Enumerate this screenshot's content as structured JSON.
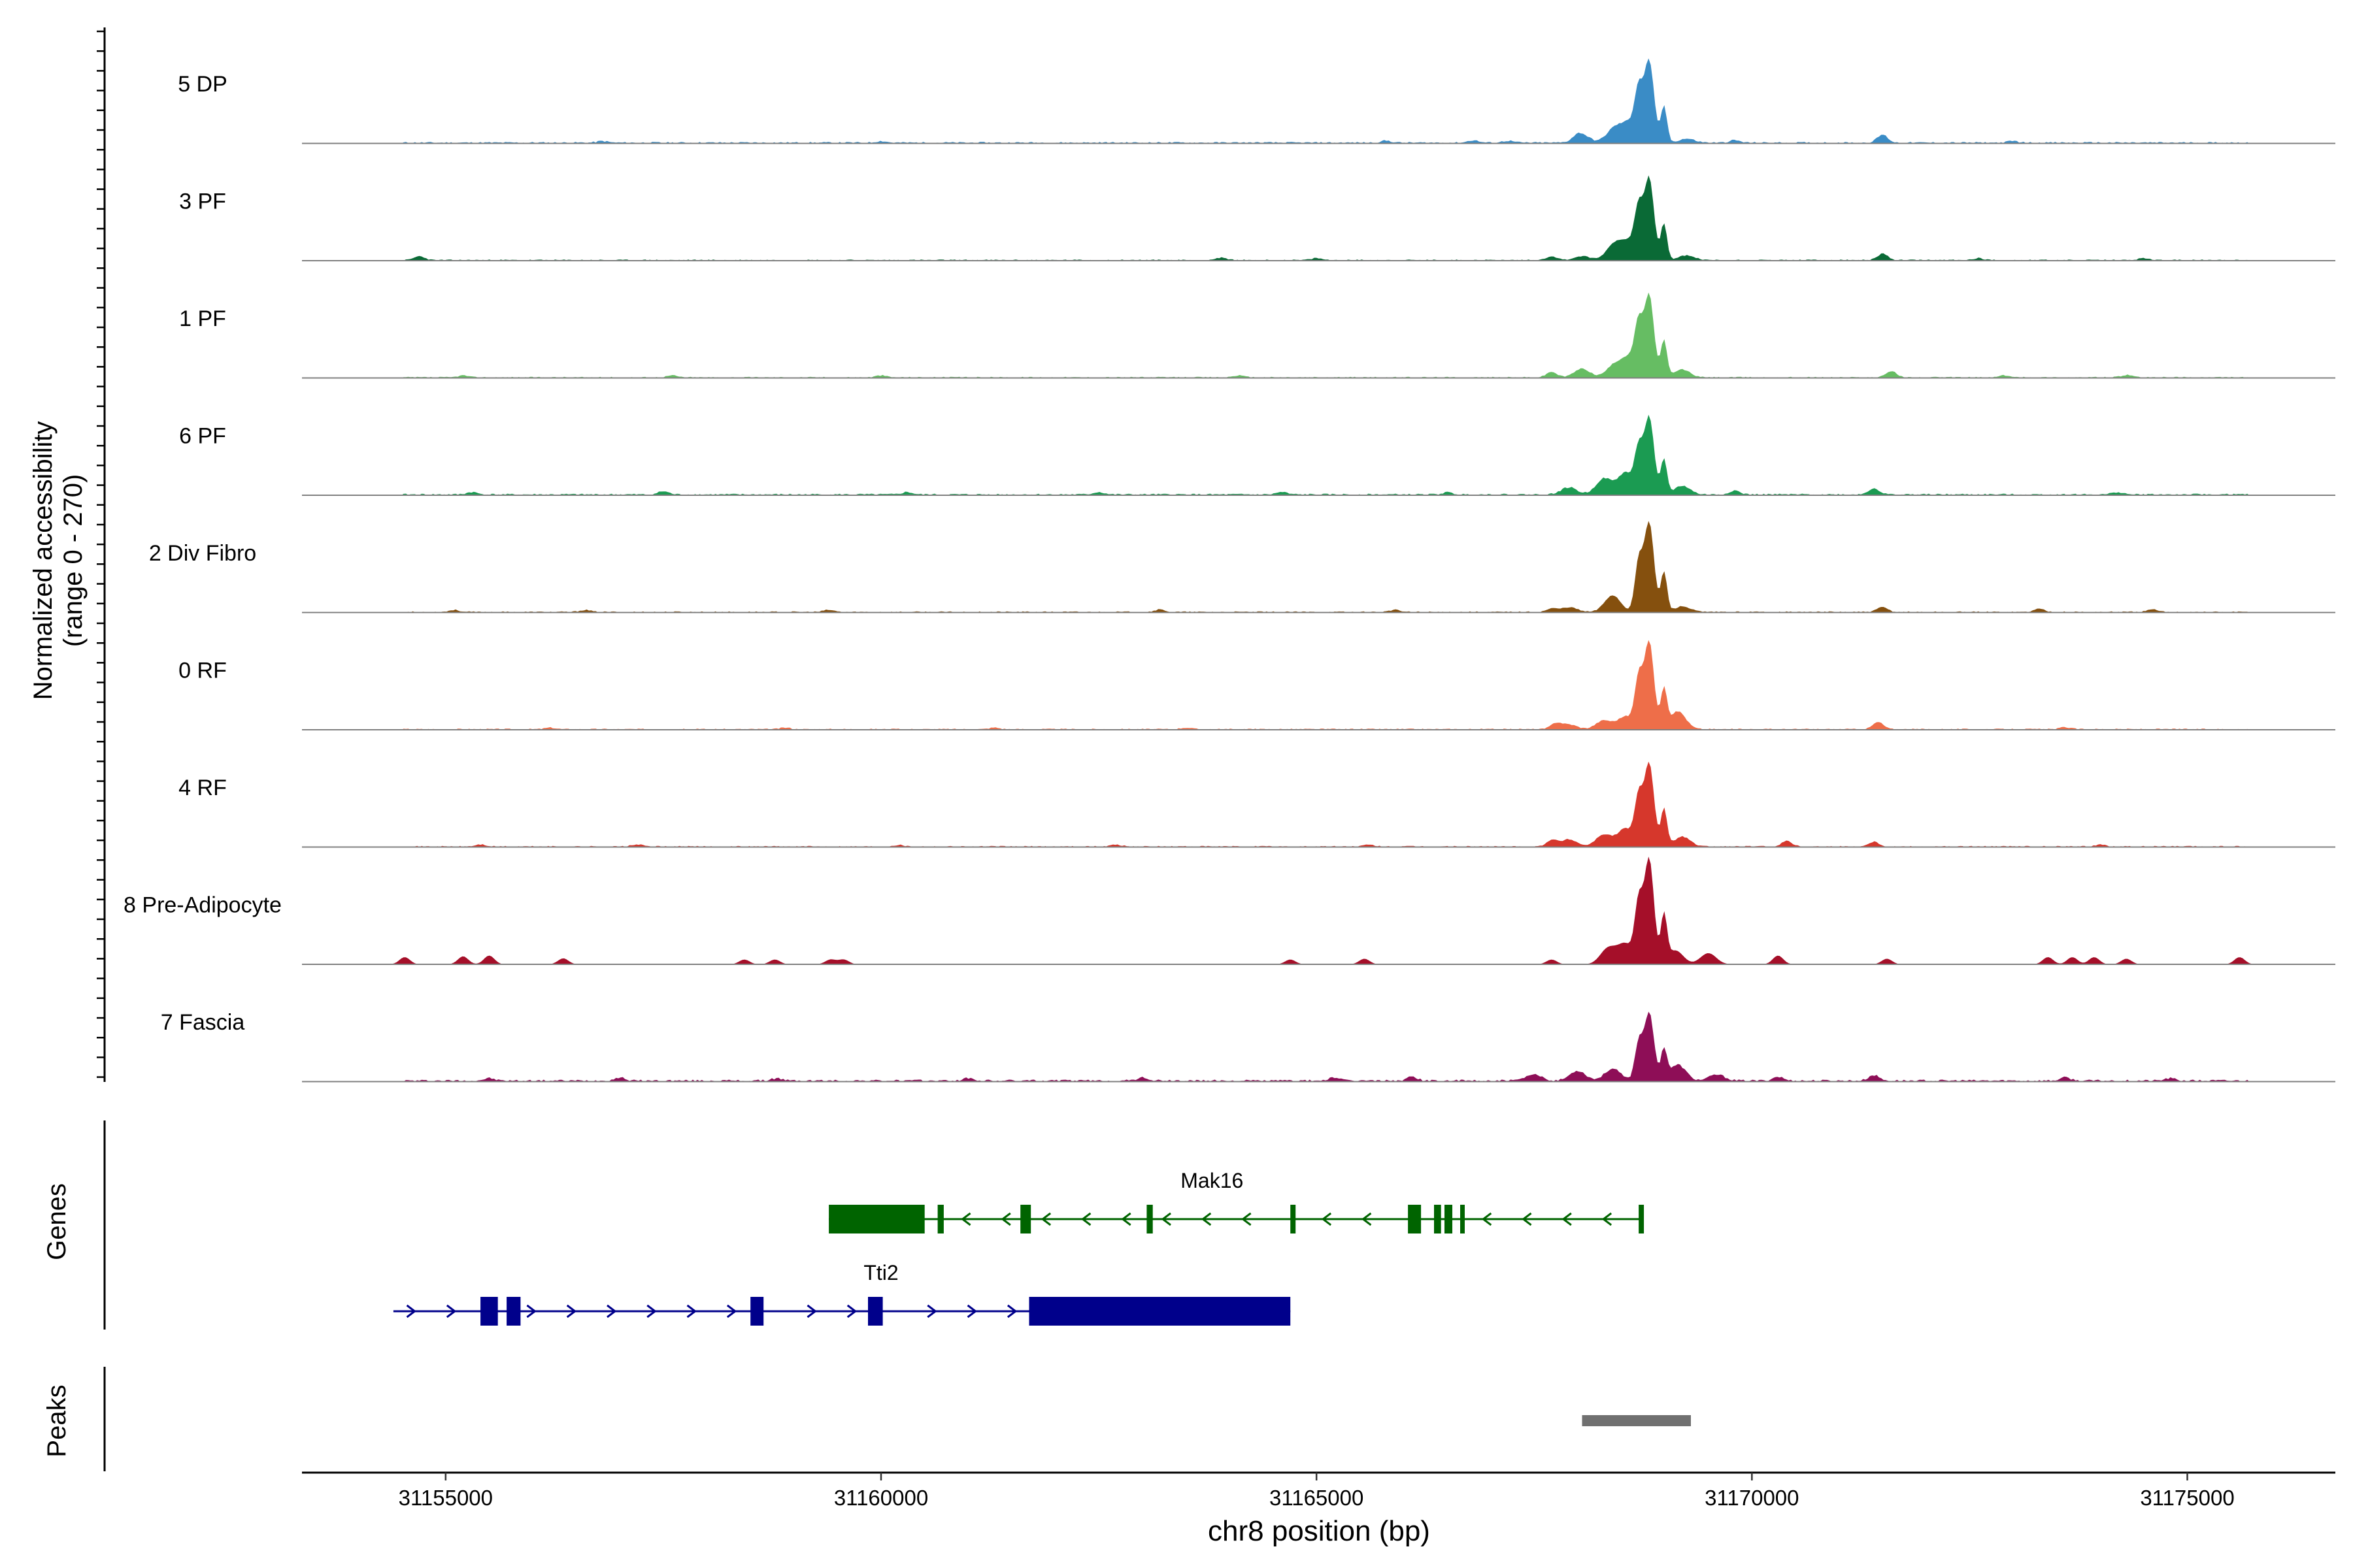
{
  "chart_data": {
    "type": "area",
    "title": "",
    "xlabel": "chr8 position (bp)",
    "ylabel_line1": "Normalized accessibility",
    "ylabel_line2": "(range 0 - 270)",
    "ylim": [
      0,
      270
    ],
    "xlim": [
      31153350,
      31176700
    ],
    "x_ticks": [
      31155000,
      31160000,
      31165000,
      31170000,
      31175000
    ],
    "x_tick_labels": [
      "31155000",
      "31160000",
      "31165000",
      "31170000",
      "31175000"
    ],
    "genes_label": "Genes",
    "peaks_label": "Peaks",
    "main_peak_center": 31168820,
    "tracks": [
      {
        "name": "5 DP",
        "color": "#3A8CC6",
        "main_height": 205,
        "shoulders": [
          [
            31168050,
            18
          ],
          [
            31168420,
            35
          ],
          [
            31168600,
            48
          ],
          [
            31169250,
            10
          ]
        ],
        "noise": 4,
        "seed": 11,
        "blips": [
          [
            31156800,
            4
          ],
          [
            31160000,
            4
          ],
          [
            31165800,
            5
          ],
          [
            31166800,
            6
          ],
          [
            31167200,
            5
          ],
          [
            31168000,
            8
          ],
          [
            31169800,
            6
          ],
          [
            31171500,
            20
          ],
          [
            31173000,
            4
          ]
        ]
      },
      {
        "name": "3 PF",
        "color": "#0A6A36",
        "main_height": 205,
        "shoulders": [
          [
            31168050,
            10
          ],
          [
            31168420,
            40
          ],
          [
            31168600,
            45
          ],
          [
            31169250,
            12
          ]
        ],
        "noise": 3,
        "seed": 23,
        "blips": [
          [
            31154700,
            10
          ],
          [
            31163900,
            6
          ],
          [
            31165000,
            5
          ],
          [
            31167700,
            10
          ],
          [
            31171500,
            16
          ],
          [
            31172600,
            5
          ],
          [
            31174500,
            5
          ]
        ]
      },
      {
        "name": "1 PF",
        "color": "#66BD63",
        "main_height": 205,
        "shoulders": [
          [
            31168050,
            22
          ],
          [
            31168420,
            30
          ],
          [
            31168600,
            50
          ],
          [
            31169200,
            20
          ]
        ],
        "noise": 3,
        "seed": 37,
        "blips": [
          [
            31155200,
            5
          ],
          [
            31157600,
            5
          ],
          [
            31160000,
            5
          ],
          [
            31164100,
            5
          ],
          [
            31167700,
            14
          ],
          [
            31171600,
            16
          ],
          [
            31172900,
            5
          ],
          [
            31174300,
            6
          ]
        ]
      },
      {
        "name": "6 PF",
        "color": "#1B9B52",
        "main_height": 195,
        "shoulders": [
          [
            31167900,
            18
          ],
          [
            31168300,
            40
          ],
          [
            31168550,
            55
          ],
          [
            31169200,
            22
          ]
        ],
        "noise": 4,
        "seed": 41,
        "blips": [
          [
            31155300,
            6
          ],
          [
            31157500,
            8
          ],
          [
            31160300,
            6
          ],
          [
            31162500,
            6
          ],
          [
            31164600,
            6
          ],
          [
            31166500,
            5
          ],
          [
            31169800,
            10
          ],
          [
            31171400,
            16
          ],
          [
            31174200,
            6
          ]
        ]
      },
      {
        "name": "2 Div Fibro",
        "color": "#85500E",
        "main_height": 225,
        "shoulders": [
          [
            31167900,
            12
          ],
          [
            31168400,
            42
          ],
          [
            31169200,
            14
          ]
        ],
        "noise": 3,
        "seed": 53,
        "blips": [
          [
            31155100,
            5
          ],
          [
            31156600,
            5
          ],
          [
            31159400,
            5
          ],
          [
            31163200,
            6
          ],
          [
            31165900,
            5
          ],
          [
            31167700,
            8
          ],
          [
            31171500,
            12
          ],
          [
            31173300,
            8
          ],
          [
            31174600,
            6
          ]
        ]
      },
      {
        "name": "0 RF",
        "color": "#EE6E49",
        "main_height": 220,
        "shoulders": [
          [
            31167900,
            12
          ],
          [
            31168300,
            22
          ],
          [
            31168550,
            32
          ],
          [
            31169150,
            45
          ]
        ],
        "noise": 3,
        "seed": 67,
        "blips": [
          [
            31156200,
            4
          ],
          [
            31158900,
            4
          ],
          [
            31161300,
            4
          ],
          [
            31163500,
            4
          ],
          [
            31167750,
            14
          ],
          [
            31171450,
            18
          ],
          [
            31173600,
            5
          ]
        ]
      },
      {
        "name": "4 RF",
        "color": "#D6372C",
        "main_height": 210,
        "shoulders": [
          [
            31167900,
            18
          ],
          [
            31168300,
            30
          ],
          [
            31168550,
            45
          ],
          [
            31169200,
            25
          ]
        ],
        "noise": 3,
        "seed": 71,
        "blips": [
          [
            31155400,
            5
          ],
          [
            31157200,
            5
          ],
          [
            31160200,
            4
          ],
          [
            31162700,
            5
          ],
          [
            31165600,
            4
          ],
          [
            31167700,
            16
          ],
          [
            31170400,
            14
          ],
          [
            31171400,
            12
          ],
          [
            31174000,
            5
          ]
        ]
      },
      {
        "name": "8 Pre-Adipocyte",
        "color": "#A50F29",
        "main_height": 265,
        "shoulders": [
          [
            31168350,
            40
          ],
          [
            31168550,
            50
          ],
          [
            31169120,
            35
          ],
          [
            31169500,
            28
          ]
        ],
        "noise": 0,
        "seed": 83,
        "blips": [
          [
            31154530,
            18
          ],
          [
            31155200,
            20
          ],
          [
            31155500,
            22
          ],
          [
            31156350,
            15
          ],
          [
            31158430,
            12
          ],
          [
            31158780,
            12
          ],
          [
            31159420,
            12
          ],
          [
            31159570,
            12
          ],
          [
            31164700,
            12
          ],
          [
            31165550,
            14
          ],
          [
            31167700,
            12
          ],
          [
            31170300,
            22
          ],
          [
            31171550,
            14
          ],
          [
            31173400,
            18
          ],
          [
            31173680,
            18
          ],
          [
            31173930,
            18
          ],
          [
            31174300,
            14
          ],
          [
            31175600,
            18
          ]
        ]
      },
      {
        "name": "7 Fascia",
        "color": "#8E0E57",
        "main_height": 170,
        "shoulders": [
          [
            31167500,
            15
          ],
          [
            31168000,
            25
          ],
          [
            31168400,
            30
          ],
          [
            31169150,
            40
          ],
          [
            31169600,
            15
          ]
        ],
        "noise": 5,
        "seed": 97,
        "blips": [
          [
            31155500,
            6
          ],
          [
            31157000,
            8
          ],
          [
            31158800,
            6
          ],
          [
            31161000,
            6
          ],
          [
            31163000,
            8
          ],
          [
            31165200,
            8
          ],
          [
            31166100,
            10
          ],
          [
            31170300,
            10
          ],
          [
            31171400,
            14
          ],
          [
            31173600,
            8
          ],
          [
            31174800,
            6
          ]
        ]
      }
    ],
    "genes": [
      {
        "name": "Mak16",
        "color": "#006400",
        "strand": "-",
        "start": 31159400,
        "end": 31168750,
        "exons": [
          [
            31159400,
            31160500
          ],
          [
            31160650,
            31160720
          ],
          [
            31161600,
            31161720
          ],
          [
            31163050,
            31163120
          ],
          [
            31164700,
            31164760
          ],
          [
            31166050,
            31166200
          ],
          [
            31166350,
            31166430
          ],
          [
            31166470,
            31166560
          ],
          [
            31166650,
            31166700
          ],
          [
            31168700,
            31168760
          ]
        ]
      },
      {
        "name": "Tti2",
        "color": "#00008B",
        "strand": "+",
        "start": 31154400,
        "end": 31164700,
        "exons": [
          [
            31155400,
            31155600
          ],
          [
            31155700,
            31155860
          ],
          [
            31158500,
            31158650
          ],
          [
            31159850,
            31160020
          ],
          [
            31161700,
            31164700
          ]
        ]
      }
    ],
    "peaks": [
      [
        31168050,
        31169300
      ]
    ]
  }
}
